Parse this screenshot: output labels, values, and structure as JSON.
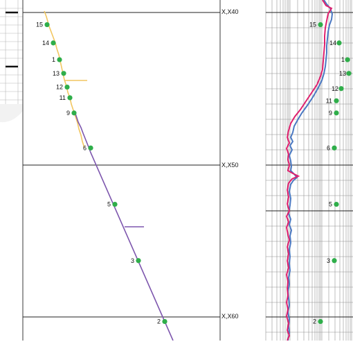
{
  "colors": {
    "upper_trace": "#f2c660",
    "lower_trace": "#7d56ad",
    "curve_a": "#4a78c2",
    "curve_b": "#e0206e",
    "marker": "#2fae4a",
    "grid": "#9a9a9a"
  },
  "depth_labels": [
    "X,X40",
    "X,X50",
    "X,X60"
  ],
  "chart_data": {
    "type": "line",
    "title": "",
    "left_track": {
      "markers": [
        {
          "id": "15",
          "depth": 40.8
        },
        {
          "id": "14",
          "depth": 42.0
        },
        {
          "id": "1",
          "depth": 43.1
        },
        {
          "id": "13",
          "depth": 44.0
        },
        {
          "id": "12",
          "depth": 44.9
        },
        {
          "id": "11",
          "depth": 45.6
        },
        {
          "id": "9",
          "depth": 46.6
        },
        {
          "id": "6",
          "depth": 48.9
        },
        {
          "id": "5",
          "depth": 52.6
        },
        {
          "id": "3",
          "depth": 56.3
        },
        {
          "id": "2",
          "depth": 60.3
        }
      ]
    },
    "right_track": {
      "markers": [
        {
          "id": "15",
          "depth": 40.8
        },
        {
          "id": "14",
          "depth": 42.0
        },
        {
          "id": "1",
          "depth": 43.1
        },
        {
          "id": "13",
          "depth": 44.0
        },
        {
          "id": "12",
          "depth": 45.0
        },
        {
          "id": "11",
          "depth": 45.8
        },
        {
          "id": "9",
          "depth": 46.6
        },
        {
          "id": "6",
          "depth": 48.9
        },
        {
          "id": "5",
          "depth": 52.6
        },
        {
          "id": "3",
          "depth": 56.3
        },
        {
          "id": "2",
          "depth": 60.3
        }
      ]
    }
  }
}
